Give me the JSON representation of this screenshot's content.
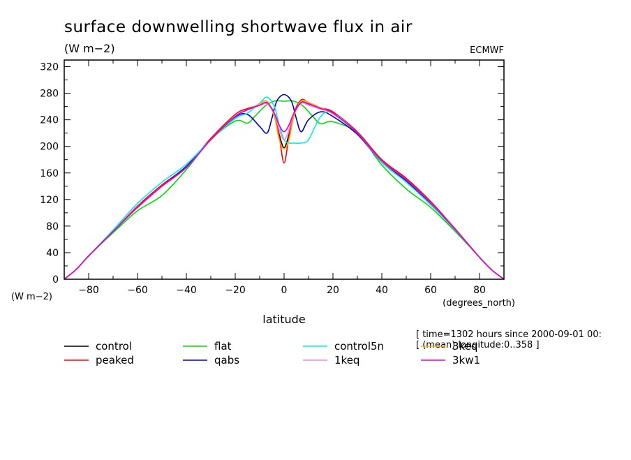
{
  "chart_data": {
    "type": "line",
    "title": "surface downwelling shortwave flux in air",
    "units": "(W m−2)",
    "source": "ECMWF",
    "ylabel_units": "(W m−2)",
    "xlabel": "latitude",
    "xlabel_units": "(degrees_north)",
    "xlim": [
      -90,
      90
    ],
    "ylim": [
      0,
      330
    ],
    "x_ticks": [
      -80,
      -60,
      -40,
      -20,
      0,
      20,
      40,
      60,
      80
    ],
    "x_tick_labels": [
      "−80",
      "−60",
      "−40",
      "−20",
      "0",
      "20",
      "40",
      "60",
      "80"
    ],
    "y_ticks": [
      0,
      40,
      80,
      120,
      160,
      200,
      240,
      280,
      320
    ],
    "y_tick_labels": [
      "0",
      "40",
      "80",
      "120",
      "160",
      "200",
      "240",
      "280",
      "320"
    ],
    "info_lines": [
      "[ time=1302 hours since 2000-09-01 00:",
      "[ (mean) longitude:0..358 ]"
    ],
    "grid": false,
    "legend_position": "bottom",
    "series": [
      {
        "name": "control",
        "color": "#000000",
        "x": [
          -90,
          -85,
          -80,
          -70,
          -60,
          -50,
          -40,
          -30,
          -20,
          -15,
          -10,
          -7,
          -4,
          -2,
          0,
          2,
          4,
          7,
          10,
          15,
          20,
          30,
          40,
          50,
          60,
          70,
          80,
          85,
          90
        ],
        "y": [
          0,
          15,
          35,
          72,
          108,
          140,
          168,
          210,
          245,
          255,
          262,
          265,
          248,
          218,
          198,
          218,
          248,
          266,
          264,
          257,
          250,
          220,
          178,
          150,
          115,
          75,
          33,
          14,
          0
        ]
      },
      {
        "name": "peaked",
        "color": "#ff0000",
        "x": [
          -90,
          -85,
          -80,
          -70,
          -60,
          -50,
          -40,
          -30,
          -20,
          -15,
          -10,
          -7,
          -4,
          -2,
          0,
          2,
          4,
          7,
          10,
          15,
          20,
          30,
          40,
          50,
          60,
          70,
          80,
          85,
          90
        ],
        "y": [
          0,
          15,
          35,
          72,
          110,
          142,
          170,
          212,
          248,
          257,
          262,
          264,
          250,
          215,
          175,
          215,
          250,
          270,
          266,
          258,
          252,
          222,
          180,
          152,
          117,
          76,
          33,
          14,
          0
        ]
      },
      {
        "name": "flat",
        "color": "#00dd00",
        "x": [
          -90,
          -85,
          -80,
          -70,
          -60,
          -50,
          -40,
          -30,
          -20,
          -15,
          -12,
          -8,
          -4,
          0,
          4,
          8,
          12,
          15,
          20,
          30,
          40,
          50,
          60,
          70,
          80,
          85,
          90
        ],
        "y": [
          0,
          15,
          35,
          70,
          103,
          126,
          165,
          210,
          238,
          235,
          245,
          260,
          268,
          268,
          268,
          260,
          244,
          234,
          237,
          220,
          172,
          136,
          108,
          72,
          33,
          14,
          0
        ]
      },
      {
        "name": "qabs",
        "color": "#0000cc",
        "x": [
          -90,
          -85,
          -80,
          -70,
          -60,
          -50,
          -40,
          -30,
          -20,
          -15,
          -10,
          -7,
          -5,
          -3,
          0,
          3,
          5,
          7,
          10,
          15,
          20,
          30,
          40,
          50,
          60,
          70,
          80,
          85,
          90
        ],
        "y": [
          0,
          15,
          35,
          72,
          108,
          140,
          170,
          210,
          244,
          248,
          230,
          220,
          242,
          268,
          278,
          268,
          242,
          222,
          240,
          252,
          245,
          218,
          176,
          148,
          113,
          74,
          33,
          14,
          0
        ]
      },
      {
        "name": "control5n",
        "color": "#00eeee",
        "x": [
          -90,
          -85,
          -80,
          -70,
          -60,
          -50,
          -40,
          -30,
          -20,
          -15,
          -10,
          -7,
          -4,
          -2,
          0,
          2,
          4,
          7,
          10,
          15,
          20,
          30,
          40,
          50,
          60,
          70,
          80,
          85,
          90
        ],
        "y": [
          0,
          15,
          35,
          74,
          114,
          146,
          173,
          210,
          242,
          250,
          265,
          274,
          260,
          232,
          210,
          205,
          205,
          205,
          210,
          245,
          250,
          220,
          176,
          146,
          112,
          74,
          33,
          14,
          0
        ]
      },
      {
        "name": "1keq",
        "color": "#ee88dd",
        "x": [
          -90,
          -85,
          -80,
          -70,
          -60,
          -50,
          -40,
          -30,
          -20,
          -15,
          -10,
          -7,
          -4,
          -2,
          0,
          2,
          4,
          7,
          10,
          15,
          20,
          30,
          40,
          50,
          60,
          70,
          80,
          85,
          90
        ],
        "y": [
          0,
          15,
          35,
          72,
          108,
          140,
          168,
          210,
          245,
          255,
          262,
          264,
          250,
          225,
          210,
          225,
          250,
          265,
          262,
          256,
          249,
          220,
          178,
          150,
          115,
          75,
          33,
          14,
          0
        ]
      },
      {
        "name": "3keq",
        "color": "#ffaa00",
        "x": [
          -90,
          -85,
          -80,
          -70,
          -60,
          -50,
          -40,
          -30,
          -20,
          -15,
          -10,
          -7,
          -4,
          -2,
          0,
          2,
          4,
          7,
          10,
          15,
          20,
          30,
          40,
          50,
          60,
          70,
          80,
          85,
          90
        ],
        "y": [
          0,
          15,
          35,
          72,
          108,
          140,
          168,
          210,
          245,
          255,
          264,
          268,
          245,
          210,
          196,
          210,
          245,
          268,
          266,
          258,
          250,
          220,
          178,
          150,
          115,
          75,
          33,
          14,
          0
        ]
      },
      {
        "name": "3kw1",
        "color": "#dd00dd",
        "x": [
          -90,
          -85,
          -80,
          -70,
          -60,
          -50,
          -40,
          -30,
          -20,
          -15,
          -10,
          -7,
          -4,
          -2,
          0,
          2,
          4,
          7,
          10,
          15,
          20,
          30,
          40,
          50,
          60,
          70,
          80,
          85,
          90
        ],
        "y": [
          0,
          15,
          35,
          72,
          108,
          140,
          168,
          210,
          245,
          255,
          262,
          266,
          250,
          232,
          222,
          232,
          250,
          266,
          264,
          257,
          250,
          220,
          178,
          150,
          115,
          75,
          33,
          14,
          0
        ]
      }
    ]
  }
}
